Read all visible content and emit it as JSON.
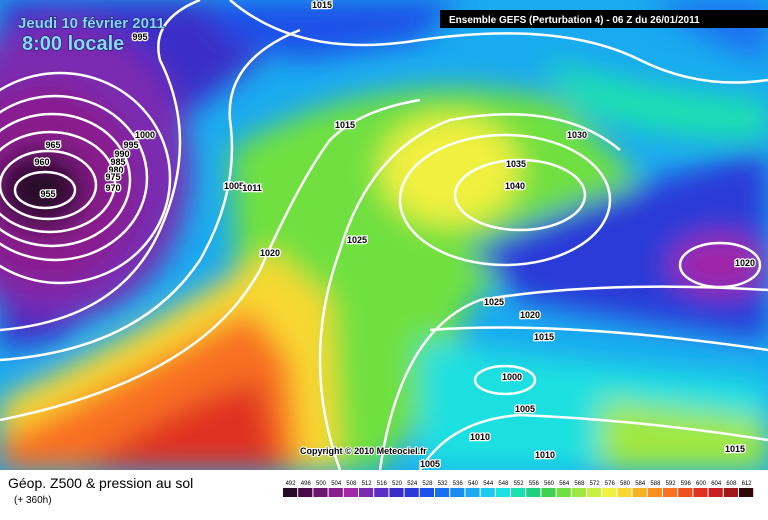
{
  "header": {
    "date": "Jeudi 10 février 2011",
    "time": "8:00 locale",
    "title": "Ensemble GEFS (Perturbation 4)  -  06 Z du 26/01/2011"
  },
  "isobar_labels": [
    "1015",
    "995",
    "1000",
    "995",
    "965",
    "990",
    "985",
    "980",
    "975",
    "970",
    "960",
    "955",
    "1005",
    "1011",
    "1015",
    "1020",
    "1025",
    "1030",
    "1035",
    "1040",
    "1020",
    "1025",
    "1020",
    "1015",
    "1000",
    "1005",
    "1010",
    "1010",
    "1005",
    "1015"
  ],
  "copyright": "Copyright © 2010 Meteociel.fr",
  "footer": {
    "title": "Géop. Z500 & pression au sol",
    "subtitle": "(+ 360h)"
  },
  "legend": {
    "labels": [
      492,
      496,
      500,
      504,
      508,
      512,
      516,
      520,
      524,
      528,
      532,
      536,
      540,
      544,
      548,
      552,
      556,
      560,
      564,
      568,
      572,
      576,
      580,
      584,
      588,
      592,
      596,
      600,
      604,
      608,
      612
    ]
  }
}
